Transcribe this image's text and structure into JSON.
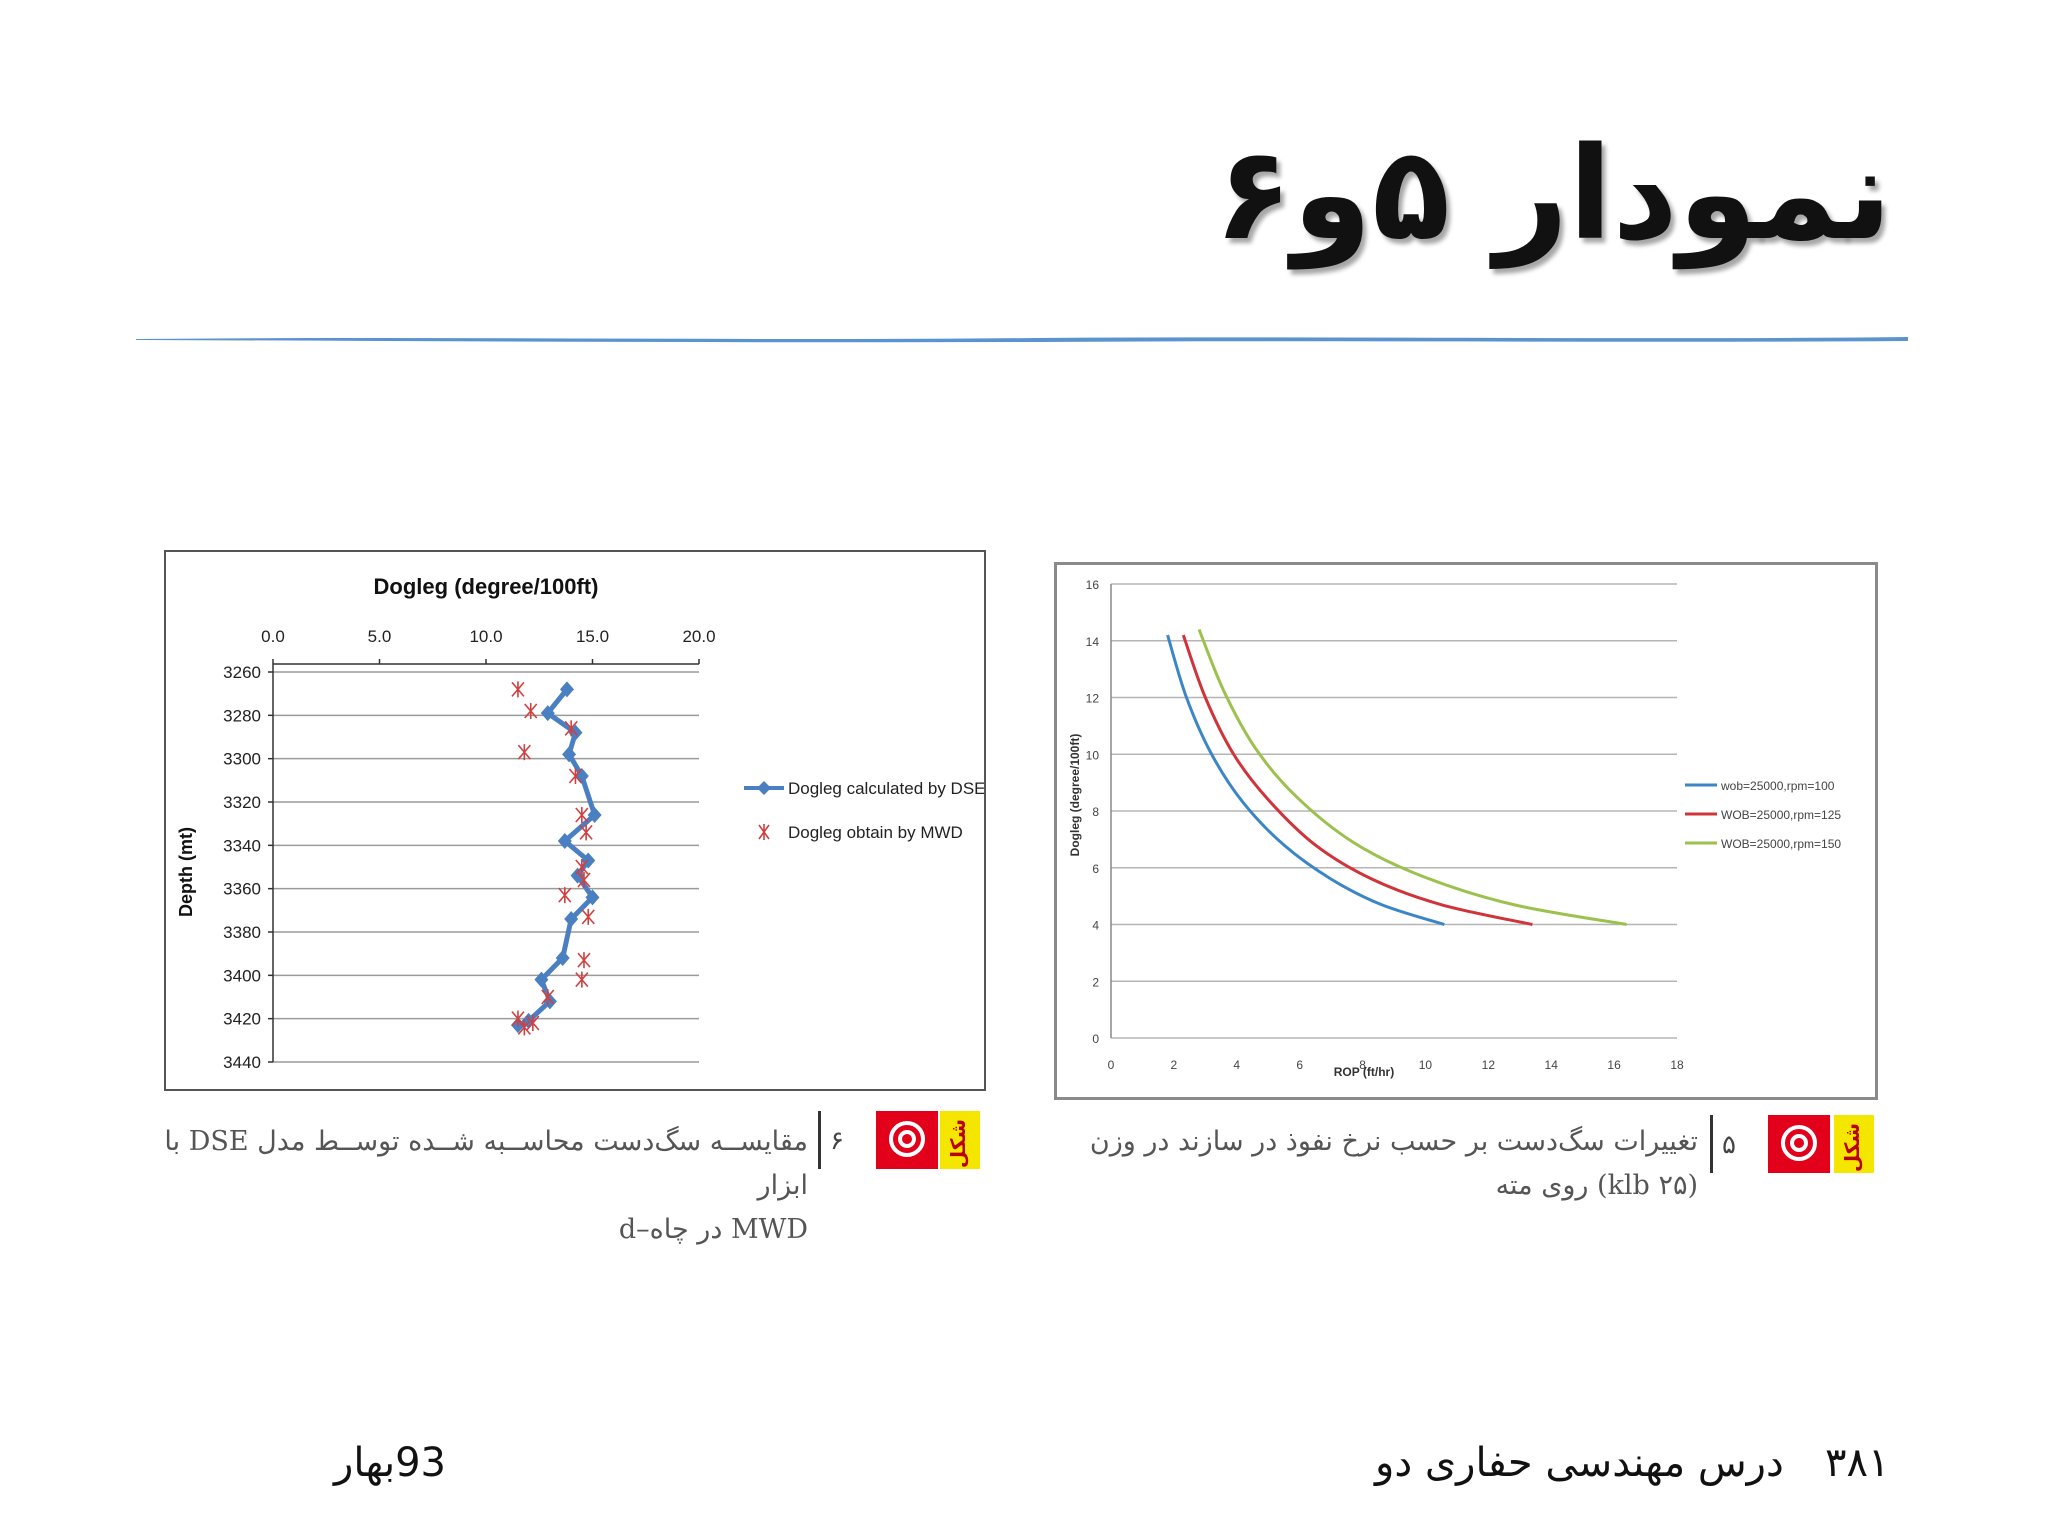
{
  "slide": {
    "title": "نمودار ۵و۶",
    "footer_course": "درس مهندسی حفاری دو",
    "footer_page": "۳۸۱",
    "footer_term": "93بهار"
  },
  "captions": {
    "fig6": {
      "badge": "شکل",
      "number": "۶",
      "line1": "مقایســه سگ‌دست محاســبه شــده توســط مدل DSE با ابزار",
      "line2": "MWD در چاه‌–d"
    },
    "fig5": {
      "badge": "شکل",
      "number": "۵",
      "line1": "تغییرات سگ‌دست بر حسب نرخ نفوذ در سازند در وزن",
      "line2": "(۲۵ klb) روی مته"
    }
  },
  "colors": {
    "accent_rule": "#5b93cf",
    "dse": "#4a7fc1",
    "mwd": "#d04040",
    "rpm100": "#3b86c6",
    "rpm125": "#d0343a",
    "rpm150": "#9cc14e"
  },
  "chart_data": [
    {
      "type": "line",
      "title": "Dogleg (degree/100ft)",
      "xlabel": "Dogleg (degree/100ft)",
      "ylabel": "Depth (mt)",
      "xlim": [
        0,
        20
      ],
      "ylim": [
        3260,
        3440
      ],
      "y_reversed": true,
      "x_axis_position": "top",
      "x_ticks": [
        "0.0",
        "5.0",
        "10.0",
        "15.0",
        "20.0"
      ],
      "y_ticks": [
        "3260",
        "3280",
        "3300",
        "3320",
        "3340",
        "3360",
        "3380",
        "3400",
        "3420",
        "3440"
      ],
      "grid": true,
      "legend": "right",
      "series": [
        {
          "name": "Dogleg calculated by DSE",
          "style": "line-diamond",
          "points": [
            [
              13.8,
              3268
            ],
            [
              12.9,
              3279
            ],
            [
              14.2,
              3288
            ],
            [
              13.9,
              3298
            ],
            [
              14.5,
              3308
            ],
            [
              15.1,
              3326
            ],
            [
              13.7,
              3338
            ],
            [
              14.8,
              3347
            ],
            [
              14.3,
              3354
            ],
            [
              15.0,
              3364
            ],
            [
              14.0,
              3374
            ],
            [
              13.6,
              3392
            ],
            [
              12.6,
              3402
            ],
            [
              13.0,
              3412
            ],
            [
              12.0,
              3421
            ],
            [
              11.5,
              3423
            ]
          ]
        },
        {
          "name": "Dogleg obtain by MWD",
          "style": "x-marker",
          "points": [
            [
              11.5,
              3268
            ],
            [
              12.1,
              3278
            ],
            [
              14.0,
              3286
            ],
            [
              11.8,
              3297
            ],
            [
              14.2,
              3308
            ],
            [
              14.5,
              3326
            ],
            [
              14.7,
              3334
            ],
            [
              14.5,
              3350
            ],
            [
              14.6,
              3356
            ],
            [
              13.7,
              3363
            ],
            [
              14.8,
              3373
            ],
            [
              14.6,
              3393
            ],
            [
              14.5,
              3402
            ],
            [
              12.9,
              3410
            ],
            [
              11.5,
              3420
            ],
            [
              11.8,
              3424
            ],
            [
              12.2,
              3422
            ]
          ]
        }
      ]
    },
    {
      "type": "line",
      "title": "",
      "xlabel": "ROP (ft/hr)",
      "ylabel": "Dogleg (degree/100ft)",
      "xlim": [
        0,
        18
      ],
      "ylim": [
        0,
        16
      ],
      "x_ticks": [
        "0",
        "2",
        "4",
        "6",
        "8",
        "10",
        "12",
        "14",
        "16",
        "18"
      ],
      "y_ticks": [
        "0",
        "2",
        "4",
        "6",
        "8",
        "10",
        "12",
        "14",
        "16"
      ],
      "grid": true,
      "legend": "right",
      "series": [
        {
          "name": "wob=25000,rpm=100",
          "points": [
            [
              1.8,
              14.2
            ],
            [
              2.4,
              12.0
            ],
            [
              3.2,
              10.0
            ],
            [
              4.2,
              8.3
            ],
            [
              5.5,
              6.8
            ],
            [
              7.0,
              5.6
            ],
            [
              8.6,
              4.7
            ],
            [
              10.6,
              4.0
            ]
          ]
        },
        {
          "name": "WOB=25000,rpm=125",
          "points": [
            [
              2.3,
              14.2
            ],
            [
              3.0,
              12.0
            ],
            [
              3.9,
              10.0
            ],
            [
              5.0,
              8.4
            ],
            [
              6.5,
              6.8
            ],
            [
              8.3,
              5.6
            ],
            [
              10.5,
              4.7
            ],
            [
              13.4,
              4.0
            ]
          ]
        },
        {
          "name": "WOB=25000,rpm=150",
          "points": [
            [
              2.8,
              14.4
            ],
            [
              3.6,
              12.2
            ],
            [
              4.6,
              10.2
            ],
            [
              5.9,
              8.5
            ],
            [
              7.7,
              6.9
            ],
            [
              9.9,
              5.7
            ],
            [
              12.8,
              4.7
            ],
            [
              16.4,
              4.0
            ]
          ]
        }
      ]
    }
  ]
}
